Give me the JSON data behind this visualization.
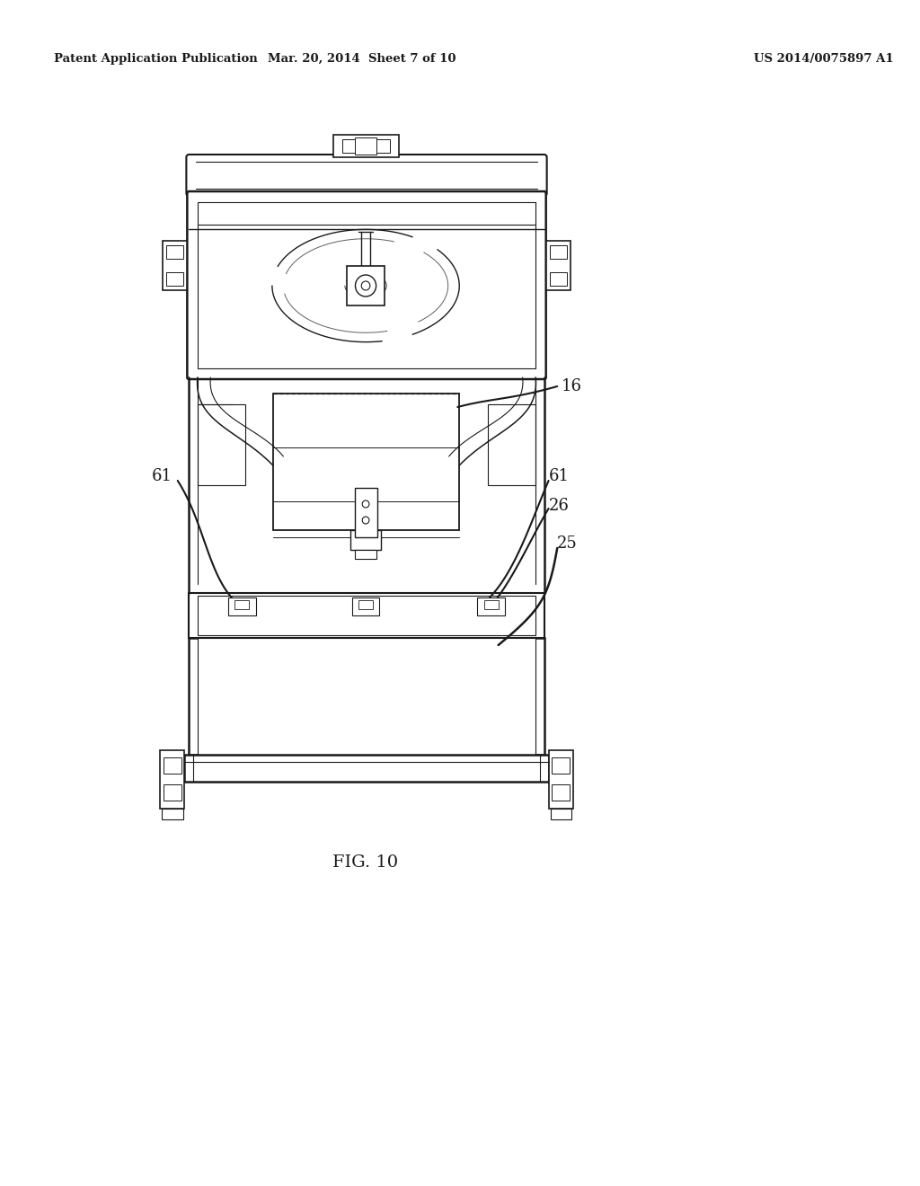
{
  "bg_color": "#ffffff",
  "header_left": "Patent Application Publication",
  "header_mid": "Mar. 20, 2014  Sheet 7 of 10",
  "header_right": "US 2014/0075897 A1",
  "fig_label": "FIG. 10",
  "label_16": "16",
  "label_25": "25",
  "label_26": "26",
  "label_61a": "61",
  "label_61b": "61",
  "lc": "#1a1a1a"
}
